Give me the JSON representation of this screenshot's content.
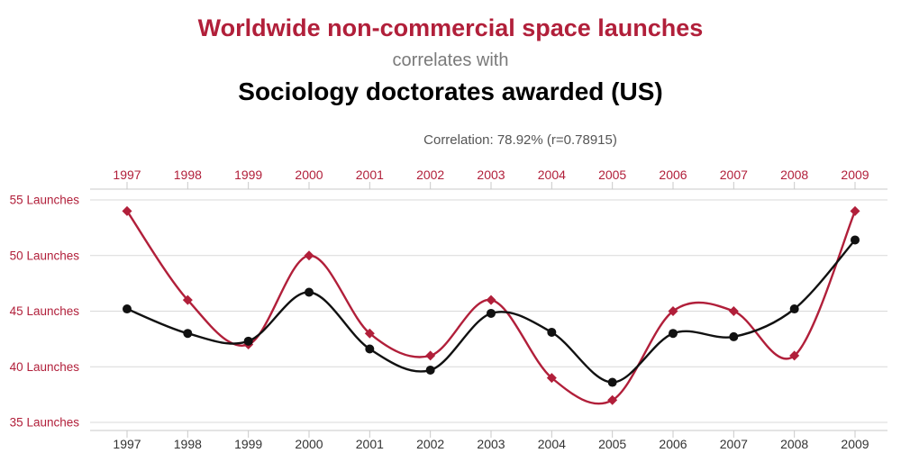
{
  "header": {
    "title_red": "Worldwide non-commercial space launches",
    "connector": "correlates with",
    "title_black": "Sociology doctorates awarded (US)",
    "correlation": "Correlation: 78.92% (r=0.78915)"
  },
  "chart_data": {
    "type": "line",
    "title": "Worldwide non-commercial space launches correlates with Sociology doctorates awarded (US)",
    "subtitle": "Correlation: 78.92% (r=0.78915)",
    "categories": [
      1997,
      1998,
      1999,
      2000,
      2001,
      2002,
      2003,
      2004,
      2005,
      2006,
      2007,
      2008,
      2009
    ],
    "series": [
      {
        "id": "space-launches",
        "name": "Worldwide non-commercial space launches",
        "color": "#b11f3a",
        "marker": "diamond",
        "unit": "Launches (left axis)",
        "values": [
          54,
          46,
          42,
          50,
          43,
          41,
          46,
          39,
          37,
          45,
          45,
          41,
          54
        ]
      },
      {
        "id": "sociology-doctorates",
        "name": "Sociology doctorates awarded (US)",
        "color": "#111111",
        "marker": "circle",
        "unit": "plotted on left-axis (launch-equivalent) scale; no right axis visible",
        "values": [
          45.2,
          43.0,
          42.3,
          46.7,
          41.6,
          39.7,
          44.8,
          43.1,
          38.6,
          43.0,
          42.7,
          45.2,
          51.4
        ]
      }
    ],
    "y_ticks": [
      {
        "value": 55,
        "label": "55 Launches"
      },
      {
        "value": 50,
        "label": "50 Launches"
      },
      {
        "value": 45,
        "label": "45 Launches"
      },
      {
        "value": 40,
        "label": "40 Launches"
      },
      {
        "value": 35,
        "label": "35 Launches"
      }
    ],
    "ylim": [
      35,
      55
    ],
    "x_axes": "years shown on both top axis (red labels) and bottom axis (dark labels)",
    "legend": "none",
    "grid": "horizontal gridlines only",
    "colors": {
      "grid": "#d9d9d9",
      "axis_line": "#c9c9c9",
      "axis_red": "#b11f3a",
      "axis_dark": "#333333"
    }
  }
}
